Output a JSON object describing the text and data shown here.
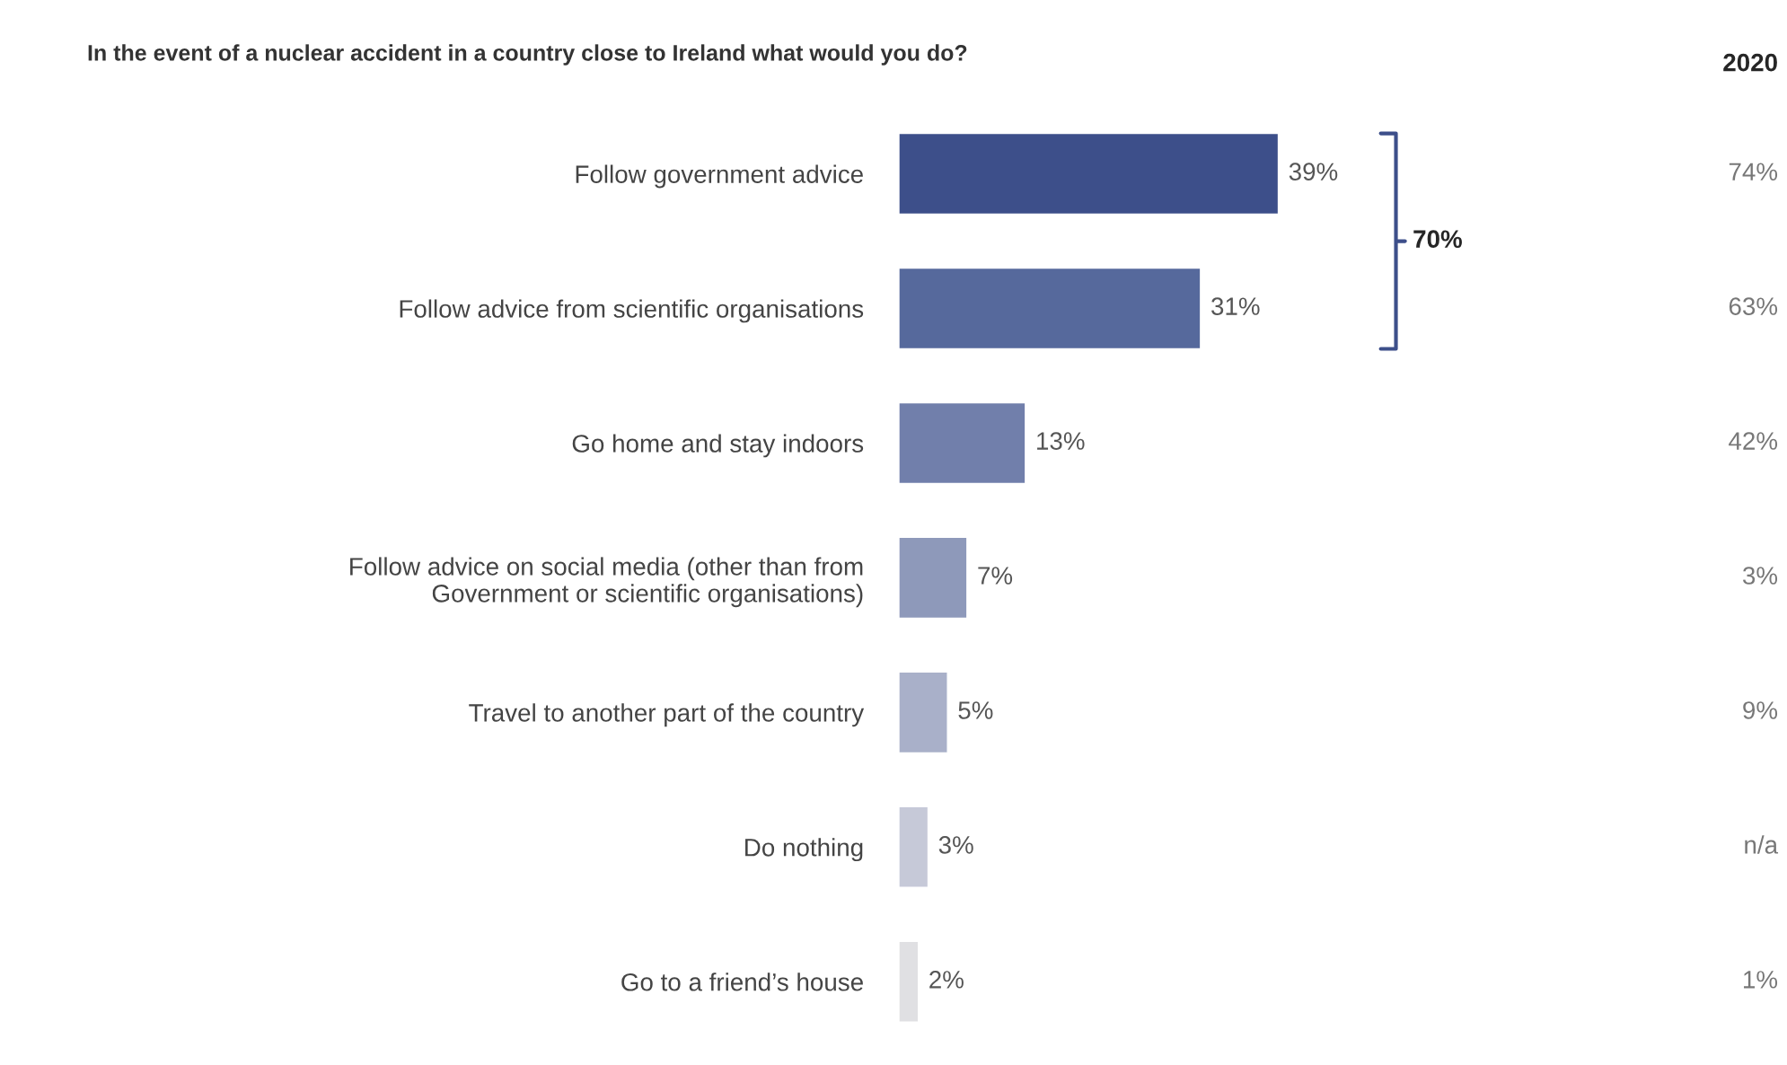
{
  "chart_data": {
    "type": "bar",
    "orientation": "horizontal",
    "data_labels": true,
    "title": "In the event of a nuclear accident in a country close to Ireland what would you do?",
    "categories": [
      "Follow government advice",
      "Follow advice from scientific organisations",
      "Go home and stay indoors",
      "Follow advice on social media (other than from\nGovernment or scientific organisations)",
      "Travel to another part of the country",
      "Do nothing",
      "Go to a friend’s house"
    ],
    "values": [
      39,
      31,
      13,
      7,
      5,
      3,
      2
    ],
    "value_labels": [
      "39%",
      "31%",
      "13%",
      "7%",
      "5%",
      "3%",
      "2%"
    ],
    "colors": [
      "#3d4f8a",
      "#56699c",
      "#717fab",
      "#8e99ba",
      "#a9b0c9",
      "#c6c9d8",
      "#e0e0e3"
    ],
    "annotations": [
      "70%",
      "2020",
      "74%",
      "63%",
      "42%",
      "3%",
      "9%",
      "n/a",
      "1%"
    ]
  }
}
